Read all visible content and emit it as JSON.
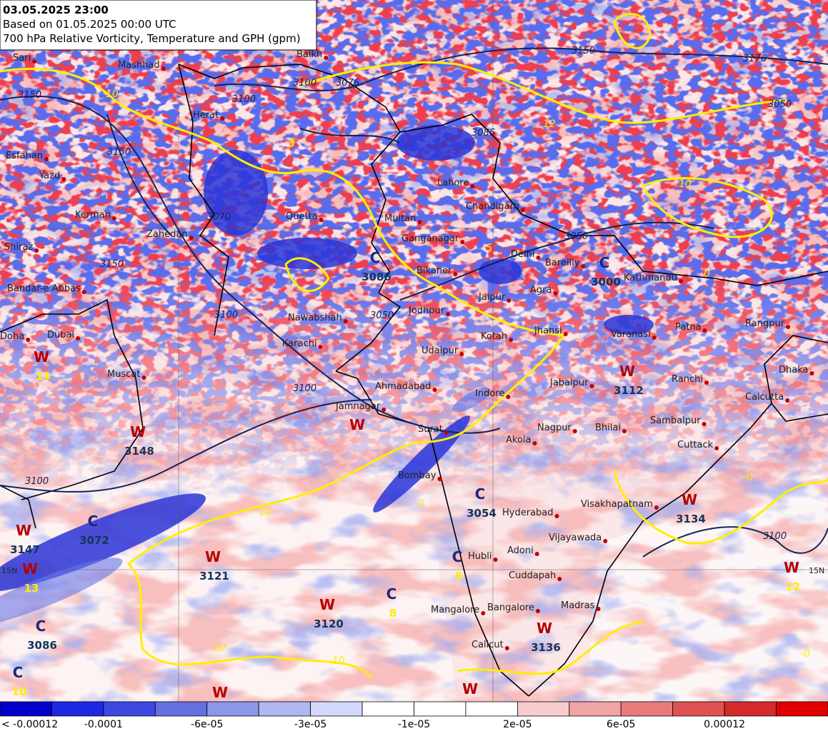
{
  "header": {
    "valid": "03.05.2025 23:00",
    "based_on": "Based on 01.05.2025 00:00 UTC",
    "description": "700 hPa Relative Vorticity, Temperature and GPH (gpm)"
  },
  "cities": [
    "Sari",
    "Mashhad",
    "Balkh",
    "Herat",
    "Esfahan",
    "Yazd",
    "Kerman",
    "Zahedan",
    "Shiraz",
    "Bandar-e Abbas",
    "Doha",
    "Dubai",
    "Muscat",
    "Quetta",
    "Karachi",
    "Nawabshah",
    "Multan",
    "Lahore",
    "Chandigarh",
    "Ganganagar",
    "Delhi",
    "Bareilly",
    "Bikaner",
    "Jaipur",
    "Agra",
    "Kathmandu",
    "Jodhpur",
    "Kotah",
    "Jhansi",
    "Varanasi",
    "Patna",
    "Rangpur",
    "Udaipur",
    "Ahmadabad",
    "Indore",
    "Jabalpur",
    "Ranchi",
    "Dhaka",
    "Calcutta",
    "Jamnagar",
    "Surat",
    "Nagpur",
    "Bhilai",
    "Akola",
    "Sambalpur",
    "Cuttack",
    "Bombay",
    "Hyderabad",
    "Visakhapatnam",
    "Vijayawada",
    "Adoni",
    "Hubli",
    "Cuddapah",
    "Mangalore",
    "Bangalore",
    "Madras",
    "Calicut"
  ],
  "centers": [
    {
      "letter": "W",
      "value": "14"
    },
    {
      "letter": "W",
      "value": "3148"
    },
    {
      "letter": "C",
      "value": "3072"
    },
    {
      "letter": "W",
      "value": "3147"
    },
    {
      "letter": "W",
      "value": "13"
    },
    {
      "letter": "W",
      "value": "3121"
    },
    {
      "letter": "W",
      "value": "3120"
    },
    {
      "letter": "C",
      "value": "8"
    },
    {
      "letter": "C",
      "value": "3086"
    },
    {
      "letter": "C",
      "value": "10"
    },
    {
      "letter": "W",
      "value": "3136"
    },
    {
      "letter": "C",
      "value": "3054"
    },
    {
      "letter": "C",
      "value": "8"
    },
    {
      "letter": "W",
      "value": "3112"
    },
    {
      "letter": "W",
      "value": "3134"
    },
    {
      "letter": "W",
      "value": "12"
    },
    {
      "letter": "C",
      "value": "3000"
    },
    {
      "letter": "C",
      "value": "3086"
    },
    {
      "letter": "W"
    },
    {
      "letter": "W"
    },
    {
      "letter": "W"
    }
  ],
  "contour_labels": [
    "3150",
    "3100",
    "3076",
    "3050",
    "3100",
    "3100",
    "3150",
    "3150",
    "3150",
    "3100",
    "3100",
    "3050",
    "3070",
    "3100",
    "3176",
    "3086",
    "3050"
  ],
  "temperature_labels": [
    "10",
    "10",
    "10",
    "10",
    "5",
    "0",
    "3",
    "5",
    "12",
    "10",
    "0",
    "-0",
    "-0"
  ],
  "lat_labels": [
    "15N",
    "15N"
  ],
  "colorbar": {
    "colors": [
      "#0000c8",
      "#1e28e0",
      "#3c48e0",
      "#6470e0",
      "#8c96ea",
      "#b0b8f2",
      "#d4d8fa",
      "#ffffff",
      "#ffffff",
      "#ffffff",
      "#f6cccc",
      "#f0a4a4",
      "#e87c7c",
      "#de5252",
      "#d42a2a",
      "#e00000"
    ],
    "labels": [
      "< -0.00012",
      "-0.0001",
      "-6e-05",
      "-3e-05",
      "-1e-05",
      "2e-05",
      "6e-05",
      "0.00012"
    ]
  }
}
